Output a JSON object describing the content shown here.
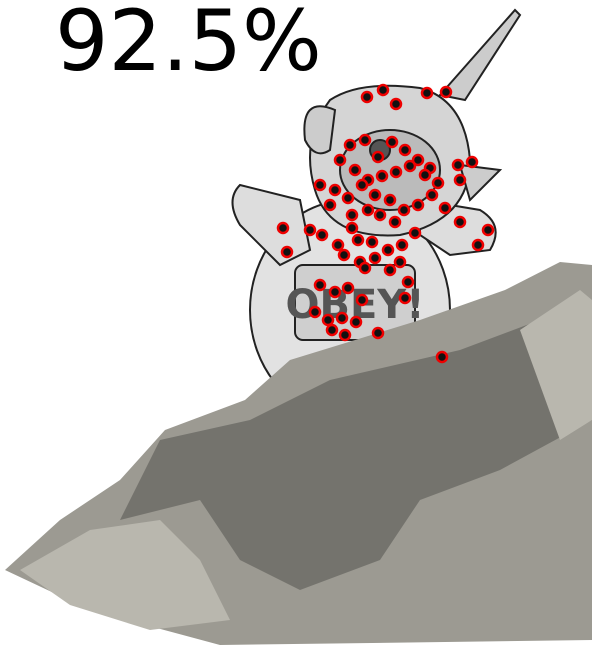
{
  "score": {
    "text": "92.5%"
  },
  "figure": {
    "badge": "OBEY!"
  }
}
